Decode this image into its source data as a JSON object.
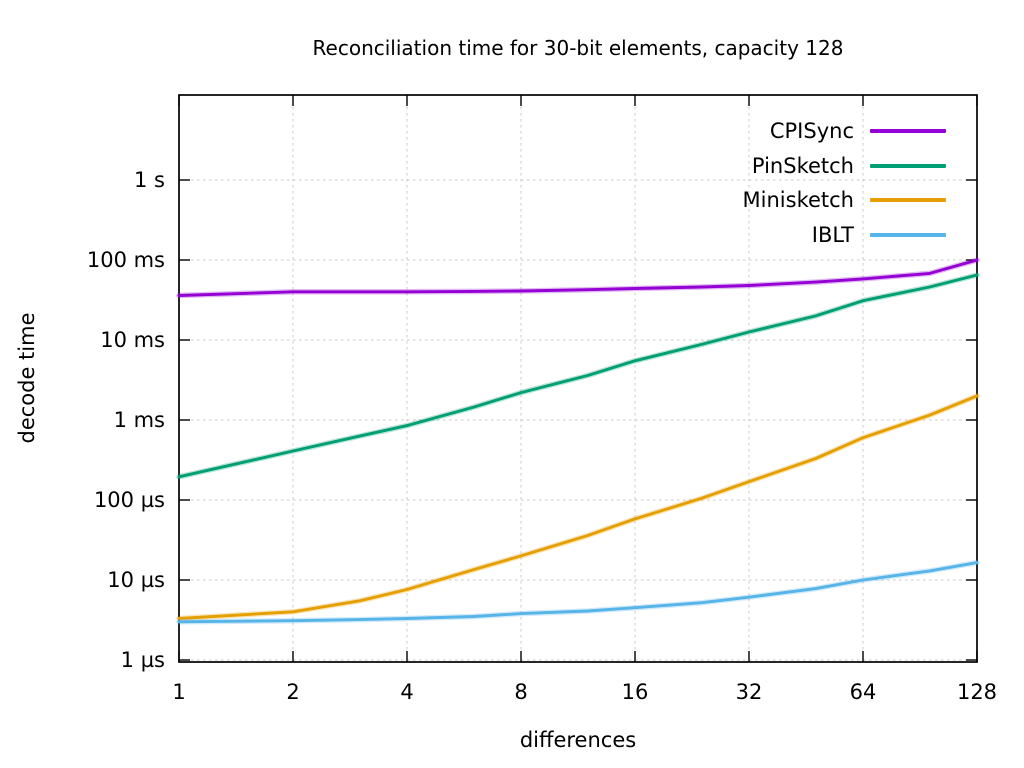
{
  "title": "Reconciliation time for 30-bit elements, capacity 128",
  "chart_data": {
    "type": "line",
    "title": "Reconciliation time for 30-bit elements, capacity 128",
    "xlabel": "differences",
    "ylabel": "decode time",
    "x_scale": "log2",
    "y_scale": "log10",
    "xlim": [
      1,
      128
    ],
    "ylim_log10_us": [
      -0.025,
      7.0625
    ],
    "grid": true,
    "legend_position": "top-right-inside",
    "x_ticks": [
      {
        "value": 1,
        "label": "1"
      },
      {
        "value": 2,
        "label": "2"
      },
      {
        "value": 4,
        "label": "4"
      },
      {
        "value": 8,
        "label": "8"
      },
      {
        "value": 16,
        "label": "16"
      },
      {
        "value": 32,
        "label": "32"
      },
      {
        "value": 64,
        "label": "64"
      },
      {
        "value": 128,
        "label": "128"
      }
    ],
    "y_ticks": [
      {
        "value_us": 1,
        "label": "1 µs"
      },
      {
        "value_us": 10,
        "label": "10 µs"
      },
      {
        "value_us": 100,
        "label": "100 µs"
      },
      {
        "value_us": 1000,
        "label": "1 ms"
      },
      {
        "value_us": 10000,
        "label": "10 ms"
      },
      {
        "value_us": 100000,
        "label": "100 ms"
      },
      {
        "value_us": 1000000,
        "label": "1 s"
      }
    ],
    "x": [
      1,
      2,
      3,
      4,
      6,
      8,
      12,
      16,
      24,
      32,
      48,
      64,
      96,
      128
    ],
    "series": [
      {
        "name": "CPISync",
        "color": "#9400d3",
        "values_us": [
          36000,
          40000,
          40000,
          40000,
          40500,
          41000,
          42500,
          44000,
          46000,
          48000,
          53000,
          58000,
          68000,
          100000
        ]
      },
      {
        "name": "PinSketch",
        "color": "#009e73",
        "values_us": [
          195,
          410,
          630,
          850,
          1450,
          2200,
          3600,
          5500,
          8800,
          12600,
          20000,
          31000,
          46000,
          65000
        ]
      },
      {
        "name": "Minisketch",
        "color": "#e69f00",
        "values_us": [
          3.3,
          4.0,
          5.5,
          7.6,
          13.5,
          20,
          36,
          58,
          105,
          170,
          330,
          600,
          1150,
          2000
        ]
      },
      {
        "name": "IBLT",
        "color": "#56b4e9",
        "values_us": [
          3.0,
          3.1,
          3.2,
          3.3,
          3.5,
          3.8,
          4.1,
          4.5,
          5.2,
          6.1,
          7.8,
          10,
          13,
          16.5
        ]
      }
    ],
    "frame_color": "#000000",
    "grid_color": "#c8c8c8"
  }
}
